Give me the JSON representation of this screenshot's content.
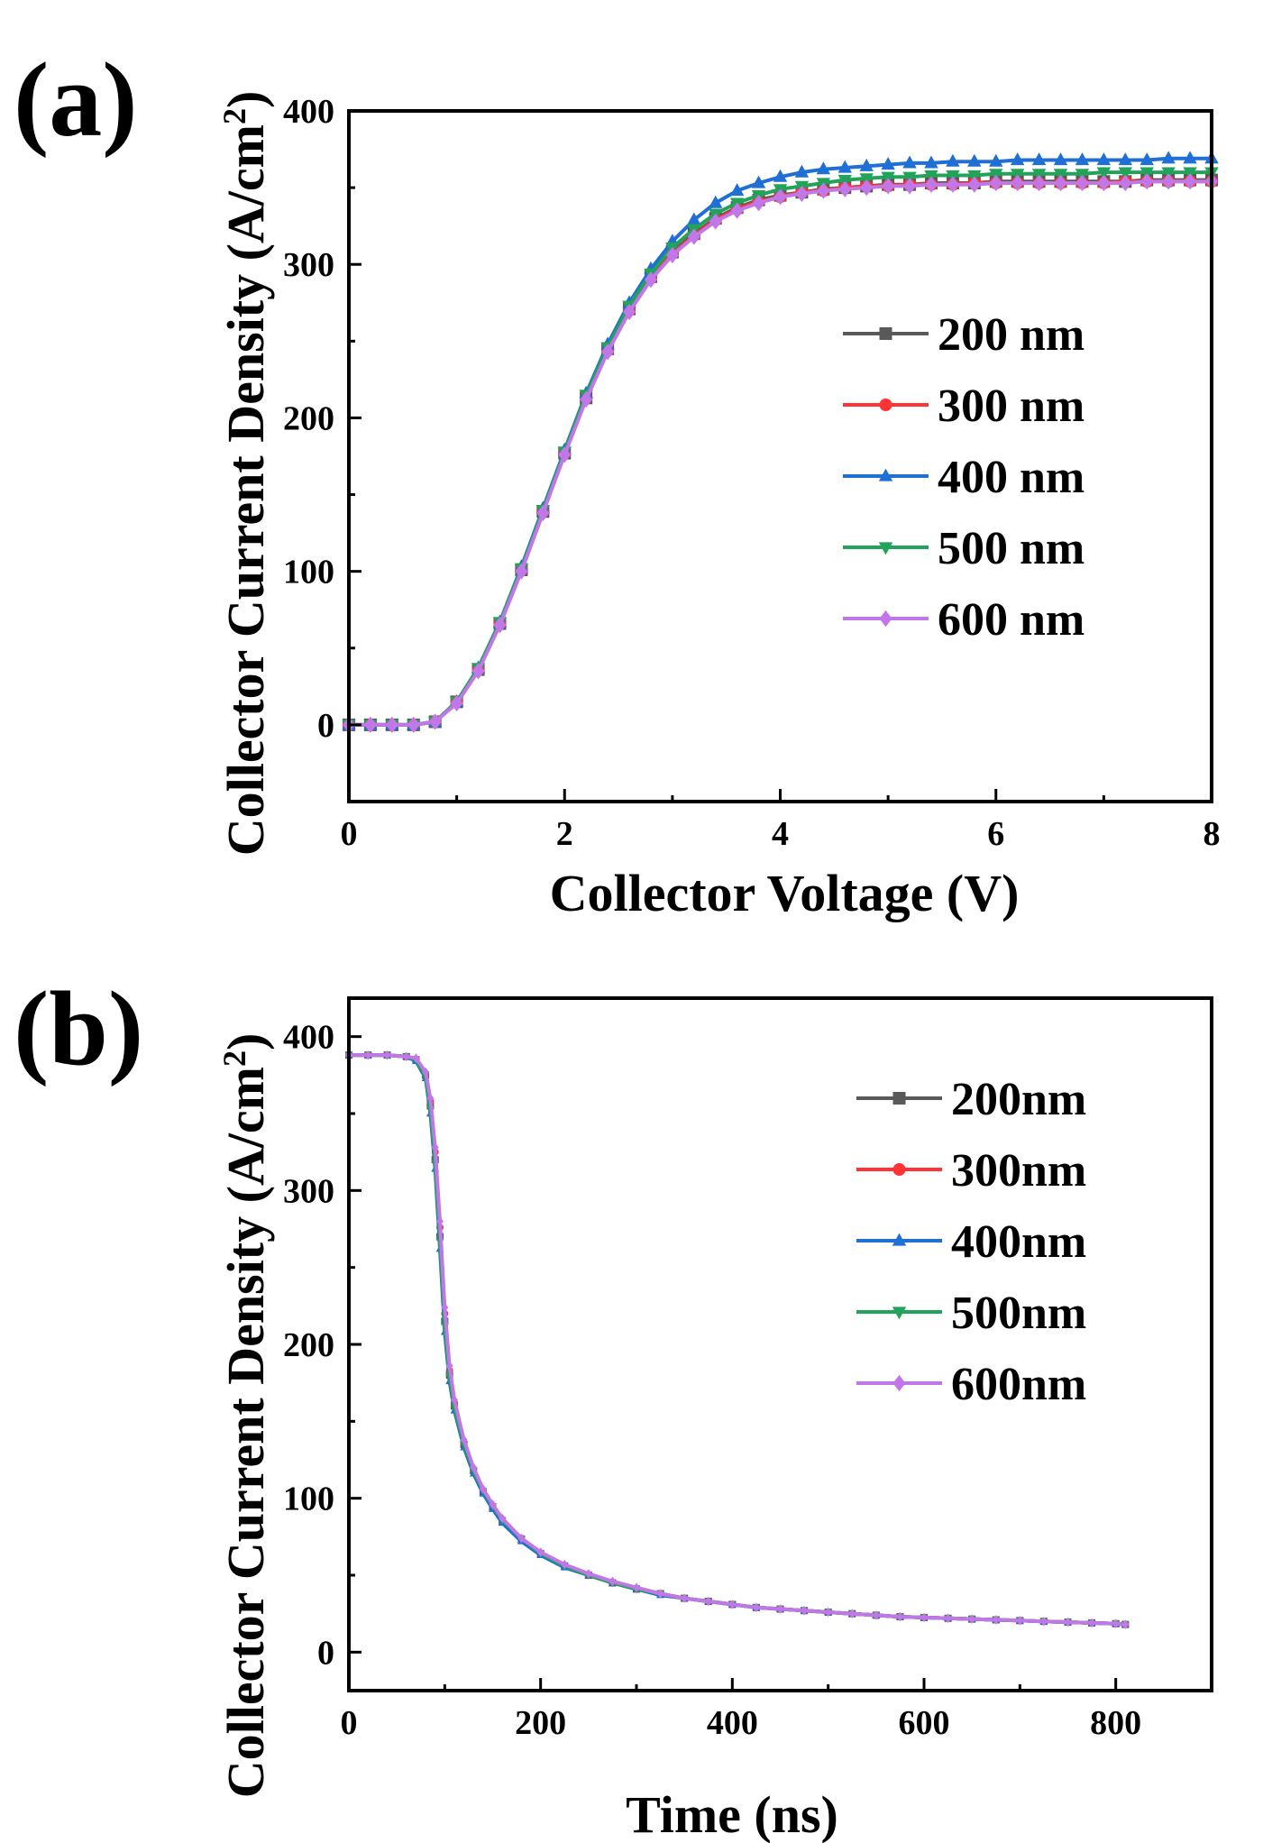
{
  "chart_data": [
    {
      "type": "line",
      "panel_label": "(a)",
      "title": "",
      "xlabel": "Collector Voltage (V)",
      "ylabel": "Collector Current Density (A/cm",
      "ylabel_superscript": "2",
      "ylabel_close": ")",
      "xlim": [
        0,
        8
      ],
      "ylim": [
        -50,
        400
      ],
      "xticks": [
        0,
        2,
        4,
        6,
        8
      ],
      "xtick_labels": [
        "0",
        "2",
        "4",
        "6",
        "8"
      ],
      "yticks": [
        0,
        100,
        200,
        300,
        400
      ],
      "ytick_labels": [
        "0",
        "100",
        "200",
        "300",
        "400"
      ],
      "grid": false,
      "legend_position": "right",
      "x": [
        0,
        0.2,
        0.4,
        0.6,
        0.8,
        1.0,
        1.2,
        1.4,
        1.6,
        1.8,
        2.0,
        2.2,
        2.4,
        2.6,
        2.8,
        3.0,
        3.2,
        3.4,
        3.6,
        3.8,
        4.0,
        4.2,
        4.4,
        4.6,
        4.8,
        5.0,
        5.2,
        5.4,
        5.6,
        5.8,
        6.0,
        6.2,
        6.4,
        6.6,
        6.8,
        7.0,
        7.2,
        7.4,
        7.6,
        7.8,
        8.0
      ],
      "series": [
        {
          "name": "200 nm",
          "color": "#595959",
          "marker": "square",
          "values": [
            0,
            0,
            0,
            0,
            2,
            15,
            36,
            66,
            101,
            139,
            177,
            213,
            245,
            271,
            292,
            308,
            320,
            330,
            337,
            342,
            345,
            347,
            349,
            350,
            351,
            352,
            352,
            353,
            353,
            353,
            354,
            354,
            354,
            354,
            354,
            354,
            354,
            355,
            355,
            355,
            355
          ]
        },
        {
          "name": "300 nm",
          "color": "#ff3333",
          "marker": "circle",
          "values": [
            0,
            0,
            0,
            0,
            2,
            15,
            36,
            66,
            101,
            139,
            177,
            213,
            244,
            270,
            291,
            307,
            319,
            329,
            336,
            341,
            344,
            347,
            348,
            350,
            351,
            351,
            352,
            352,
            352,
            353,
            353,
            353,
            353,
            353,
            353,
            353,
            354,
            354,
            354,
            354,
            354
          ]
        },
        {
          "name": "400 nm",
          "color": "#1f6fd6",
          "marker": "triangle-up",
          "values": [
            0,
            0,
            0,
            0,
            2,
            15,
            37,
            67,
            103,
            141,
            179,
            216,
            248,
            275,
            297,
            315,
            329,
            340,
            348,
            353,
            357,
            360,
            362,
            363,
            364,
            365,
            366,
            366,
            367,
            367,
            367,
            368,
            368,
            368,
            368,
            368,
            368,
            368,
            369,
            369,
            369
          ]
        },
        {
          "name": "500 nm",
          "color": "#22a35a",
          "marker": "triangle-down",
          "values": [
            0,
            0,
            0,
            0,
            2,
            15,
            37,
            67,
            102,
            140,
            178,
            215,
            246,
            273,
            294,
            311,
            323,
            333,
            340,
            345,
            349,
            351,
            353,
            355,
            356,
            357,
            357,
            358,
            358,
            358,
            359,
            359,
            359,
            359,
            359,
            360,
            360,
            360,
            360,
            360,
            360
          ]
        },
        {
          "name": "600 nm",
          "color": "#c177e8",
          "marker": "diamond",
          "values": [
            0,
            0,
            0,
            0,
            2,
            14,
            35,
            65,
            100,
            138,
            176,
            212,
            243,
            269,
            290,
            306,
            318,
            328,
            335,
            340,
            344,
            346,
            348,
            349,
            350,
            351,
            351,
            352,
            352,
            352,
            353,
            353,
            353,
            353,
            353,
            353,
            353,
            354,
            354,
            354,
            354
          ]
        }
      ]
    },
    {
      "type": "line",
      "panel_label": "(b)",
      "title": "",
      "xlabel": "Time (ns)",
      "ylabel": "Collector Current Density (A/cm",
      "ylabel_superscript": "2",
      "ylabel_close": ")",
      "xlim": [
        0,
        900
      ],
      "ylim": [
        -25,
        425
      ],
      "xticks": [
        0,
        200,
        400,
        600,
        800
      ],
      "xtick_labels": [
        "0",
        "200",
        "400",
        "600",
        "800"
      ],
      "yticks": [
        0,
        100,
        200,
        300,
        400
      ],
      "ytick_labels": [
        "0",
        "100",
        "200",
        "300",
        "400"
      ],
      "grid": false,
      "legend_position": "top-right",
      "x": [
        0,
        20,
        40,
        60,
        70,
        80,
        85,
        90,
        95,
        100,
        105,
        110,
        120,
        130,
        140,
        150,
        160,
        180,
        200,
        225,
        250,
        275,
        300,
        325,
        350,
        375,
        400,
        425,
        450,
        475,
        500,
        525,
        550,
        575,
        600,
        625,
        650,
        675,
        700,
        725,
        750,
        775,
        800,
        810
      ],
      "series": [
        {
          "name": "200nm",
          "color": "#595959",
          "marker": "square",
          "values": [
            388,
            388,
            388,
            387,
            385,
            375,
            355,
            320,
            270,
            215,
            180,
            160,
            135,
            118,
            104,
            94,
            85,
            73,
            64,
            56,
            50,
            45,
            41,
            38,
            35,
            33,
            31,
            29,
            28,
            27,
            26,
            25,
            24,
            23,
            22.5,
            22,
            21.5,
            21,
            20.5,
            20,
            19.5,
            19,
            18.5,
            18
          ]
        },
        {
          "name": "300nm",
          "color": "#ff3333",
          "marker": "circle",
          "values": [
            388,
            388,
            388,
            387,
            385,
            376,
            358,
            325,
            276,
            220,
            183,
            162,
            136,
            119,
            105,
            95,
            86,
            74,
            64,
            56,
            50,
            45,
            41,
            38,
            35,
            33,
            31,
            29,
            28,
            27,
            26,
            25,
            24,
            23,
            22.5,
            22,
            21.5,
            21,
            20.5,
            20,
            19.5,
            19,
            18.5,
            18
          ]
        },
        {
          "name": "400nm",
          "color": "#1f6fd6",
          "marker": "triangle-up",
          "values": [
            388,
            388,
            388,
            387,
            384,
            373,
            350,
            314,
            262,
            208,
            176,
            157,
            133,
            116,
            103,
            93,
            84,
            72,
            63,
            55,
            50,
            45,
            41,
            37,
            35,
            33,
            31,
            29,
            28,
            27,
            26,
            25,
            24,
            23,
            22.5,
            22,
            21.5,
            21,
            20.5,
            20,
            19.5,
            19,
            18.5,
            18
          ]
        },
        {
          "name": "500nm",
          "color": "#22a35a",
          "marker": "triangle-down",
          "values": [
            388,
            388,
            388,
            387,
            385,
            374,
            353,
            318,
            267,
            212,
            179,
            159,
            135,
            118,
            105,
            95,
            86,
            74,
            64,
            56,
            50,
            45,
            41,
            38,
            35,
            33,
            31,
            29,
            28,
            27,
            26,
            25,
            24,
            23,
            22.5,
            22,
            21.5,
            21,
            20.5,
            20,
            19.5,
            19,
            18.5,
            18
          ]
        },
        {
          "name": "600nm",
          "color": "#c177e8",
          "marker": "diamond",
          "values": [
            388,
            388,
            388,
            387,
            386,
            377,
            360,
            328,
            280,
            224,
            186,
            164,
            138,
            120,
            106,
            96,
            87,
            74,
            65,
            57,
            51,
            46,
            42,
            38,
            35,
            33,
            31,
            29,
            28,
            27,
            26,
            25,
            24,
            23,
            22.5,
            22,
            21.5,
            21,
            20.5,
            20,
            19.5,
            19,
            18.5,
            18
          ]
        }
      ]
    }
  ]
}
